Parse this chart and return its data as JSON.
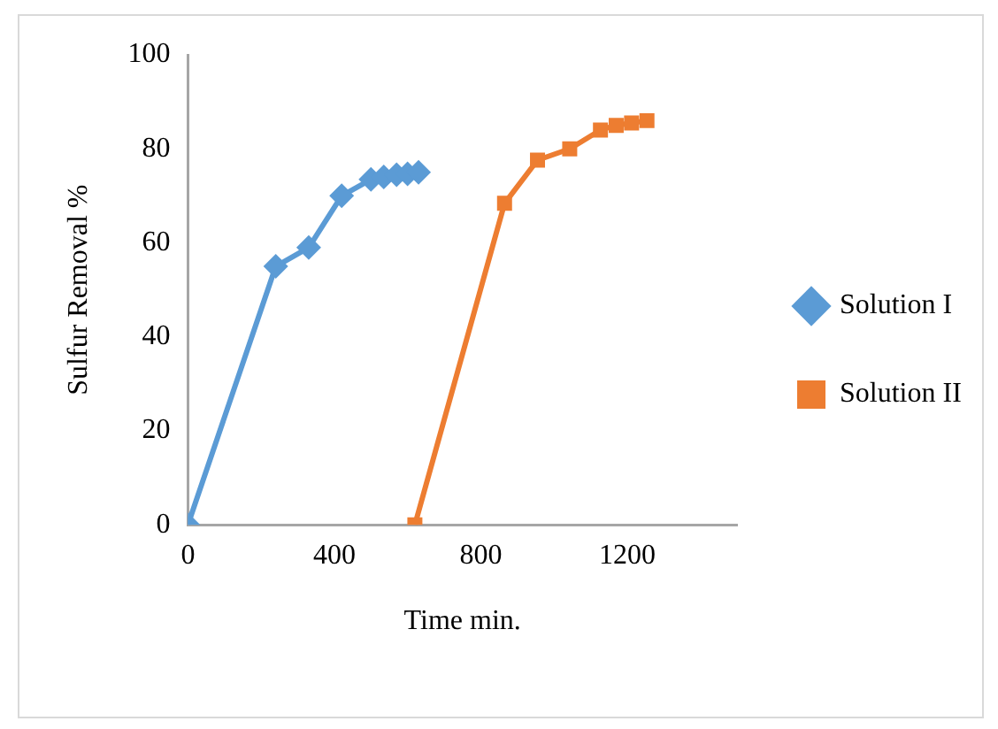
{
  "chart_data": {
    "type": "line",
    "xlabel": "Time min.",
    "ylabel": "Sulfur Removal %",
    "xlim": [
      0,
      1500
    ],
    "xticks": [
      0,
      400,
      800,
      1200
    ],
    "ylim": [
      0,
      100
    ],
    "yticks": [
      0,
      20,
      40,
      60,
      80,
      100
    ],
    "grid": false,
    "legend": "right",
    "line_style": "solid",
    "series": [
      {
        "name": "Solution I",
        "color": "#5b9bd5",
        "marker": "diamond",
        "x": [
          0,
          240,
          330,
          420,
          500,
          535,
          570,
          600,
          630
        ],
        "values": [
          0,
          55,
          59,
          70,
          73.5,
          74,
          74.5,
          74.7,
          75
        ]
      },
      {
        "name": "Solution II",
        "color": "#ed7d31",
        "marker": "square",
        "x": [
          620,
          865,
          955,
          1043,
          1127,
          1170,
          1212,
          1254
        ],
        "values": [
          0,
          68.4,
          77.6,
          80,
          84,
          85,
          85.5,
          86
        ]
      }
    ]
  }
}
